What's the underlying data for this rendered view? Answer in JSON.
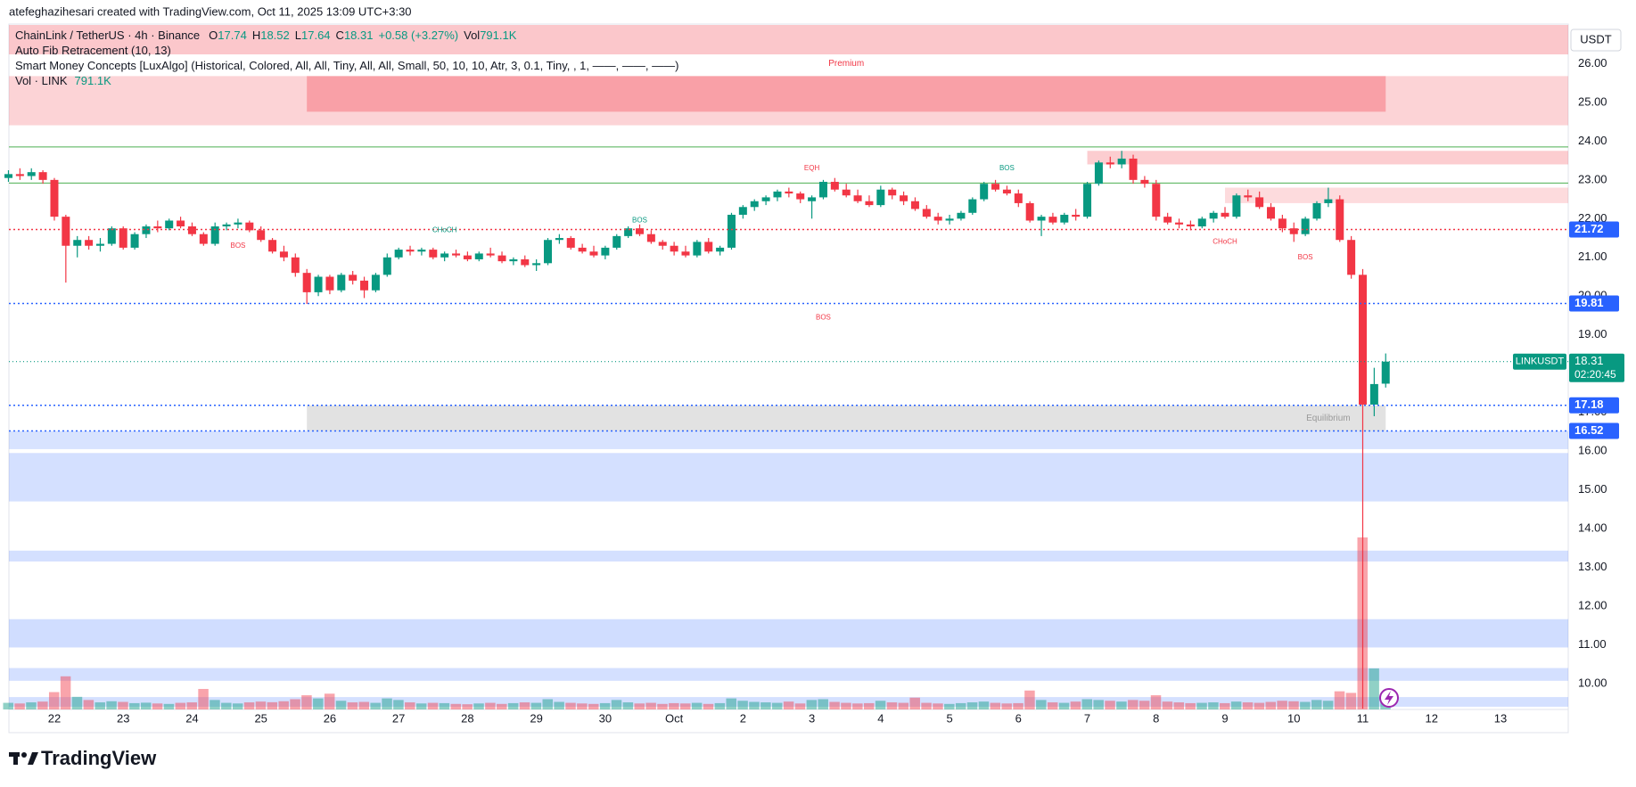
{
  "header": "atefeghazihesari created with TradingView.com, Oct 11, 2025 13:09 UTC+3:30",
  "brand": "TradingView",
  "chart_data": {
    "type": "candlestick",
    "symbol": "ChainLink / TetherUS · 4h · Binance",
    "ohlc_prefixes": [
      "O",
      "H",
      "L",
      "C"
    ],
    "change": "+0.58 (+3.27%)",
    "volume_prefix": "Vol",
    "indicators": [
      "Auto Fib Retracement (10, 13)",
      "Smart Money Concepts [LuxAlgo] (Historical, Colored, All, All, Tiny, All, All, Small, 50, 10, 10, Atr, 3, 0.1, Tiny, , 1, ——, ——, ——)",
      "Vol · LINK"
    ],
    "currency": "USDT",
    "ticker": "LINKUSDT",
    "countdown": "02:20:45",
    "up_color": "#089981",
    "down_color": "#f23645",
    "level_color": "#2962ff",
    "grid": false,
    "categories": [
      null,
      null,
      null,
      null,
      "22",
      null,
      null,
      null,
      null,
      null,
      "23",
      null,
      null,
      null,
      null,
      null,
      "24",
      null,
      null,
      null,
      null,
      null,
      "25",
      null,
      null,
      null,
      null,
      null,
      "26",
      null,
      null,
      null,
      null,
      null,
      "27",
      null,
      null,
      null,
      null,
      null,
      "28",
      null,
      null,
      null,
      null,
      null,
      "29",
      null,
      null,
      null,
      null,
      null,
      "30",
      null,
      null,
      null,
      null,
      null,
      "Oct",
      null,
      null,
      null,
      null,
      null,
      "2",
      null,
      null,
      null,
      null,
      null,
      "3",
      null,
      null,
      null,
      null,
      null,
      "4",
      null,
      null,
      null,
      null,
      null,
      "5",
      null,
      null,
      null,
      null,
      null,
      "6",
      null,
      null,
      null,
      null,
      null,
      "7",
      null,
      null,
      null,
      null,
      null,
      "8",
      null,
      null,
      null,
      null,
      null,
      "9",
      null,
      null,
      null,
      null,
      null,
      "10",
      null,
      null,
      null,
      null,
      null,
      "11",
      null,
      null,
      null,
      null,
      null,
      "12",
      null,
      null,
      null,
      null,
      null,
      "13",
      null,
      null,
      null,
      null,
      null,
      null
    ],
    "open": [
      23.05,
      23.15,
      23.1,
      23.2,
      23.0,
      22.05,
      21.3,
      21.45,
      21.3,
      21.35,
      21.75,
      21.25,
      21.6,
      21.8,
      21.75,
      21.95,
      21.8,
      21.6,
      21.35,
      21.8,
      21.85,
      21.9,
      21.7,
      21.45,
      21.15,
      21.0,
      20.6,
      20.1,
      20.5,
      20.15,
      20.55,
      20.4,
      20.15,
      20.55,
      21.0,
      21.2,
      21.15,
      21.2,
      21.0,
      21.1,
      21.05,
      20.95,
      21.1,
      21.05,
      20.9,
      20.95,
      20.8,
      20.85,
      21.45,
      21.5,
      21.25,
      21.15,
      21.05,
      21.25,
      21.55,
      21.75,
      21.6,
      21.4,
      21.3,
      21.15,
      21.05,
      21.4,
      21.15,
      21.25,
      22.1,
      22.3,
      22.45,
      22.55,
      22.7,
      22.65,
      22.45,
      22.55,
      22.95,
      22.75,
      22.6,
      22.45,
      22.35,
      22.75,
      22.6,
      22.45,
      22.25,
      22.05,
      21.95,
      22.0,
      22.15,
      22.5,
      22.9,
      22.75,
      22.65,
      22.4,
      21.95,
      22.05,
      21.9,
      22.1,
      22.05,
      22.9,
      23.45,
      23.4,
      23.55,
      23.0,
      22.9,
      22.05,
      21.9,
      21.85,
      21.8,
      22.0,
      22.15,
      22.05,
      22.6,
      22.55,
      22.3,
      22.0,
      21.75,
      21.6,
      22.0,
      22.4,
      22.5,
      21.45,
      20.55,
      17.2,
      17.74,
      null,
      null,
      null,
      null,
      null,
      null,
      null,
      null,
      null,
      null,
      null,
      null,
      null,
      null,
      null,
      null
    ],
    "high": [
      23.25,
      23.3,
      23.3,
      23.25,
      23.05,
      22.1,
      21.55,
      21.55,
      21.5,
      21.8,
      21.8,
      21.65,
      21.85,
      21.95,
      22.0,
      22.05,
      21.9,
      21.65,
      21.9,
      21.9,
      22.0,
      21.95,
      21.8,
      21.5,
      21.3,
      21.1,
      20.7,
      20.55,
      20.55,
      20.6,
      20.65,
      20.5,
      20.6,
      21.1,
      21.25,
      21.3,
      21.25,
      21.25,
      21.15,
      21.2,
      21.15,
      21.15,
      21.25,
      21.15,
      21.0,
      21.05,
      20.95,
      21.5,
      21.6,
      21.55,
      21.35,
      21.3,
      21.3,
      21.6,
      21.8,
      21.85,
      21.7,
      21.45,
      21.4,
      21.3,
      21.45,
      21.5,
      21.3,
      22.15,
      22.35,
      22.5,
      22.6,
      22.75,
      22.8,
      22.7,
      22.6,
      23.0,
      23.05,
      22.9,
      22.75,
      22.6,
      22.85,
      22.8,
      22.7,
      22.55,
      22.35,
      22.15,
      22.1,
      22.2,
      22.55,
      22.95,
      23.0,
      22.85,
      22.75,
      22.45,
      22.1,
      22.15,
      22.15,
      22.25,
      22.95,
      23.5,
      23.6,
      23.75,
      23.65,
      23.1,
      23.0,
      22.15,
      22.0,
      21.95,
      22.05,
      22.2,
      22.3,
      22.65,
      22.75,
      22.7,
      22.4,
      22.1,
      21.9,
      22.05,
      22.45,
      22.8,
      22.6,
      21.55,
      20.7,
      18.15,
      18.52,
      null,
      null,
      null,
      null,
      null,
      null,
      null,
      null,
      null,
      null,
      null,
      null,
      null,
      null,
      null,
      null
    ],
    "low": [
      22.95,
      23.0,
      23.0,
      22.9,
      21.95,
      20.35,
      21.0,
      21.2,
      21.15,
      21.3,
      21.2,
      21.2,
      21.5,
      21.65,
      21.7,
      21.75,
      21.55,
      21.3,
      21.3,
      21.7,
      21.75,
      21.65,
      21.4,
      21.1,
      20.9,
      20.5,
      19.8,
      20.0,
      20.05,
      20.1,
      20.3,
      19.95,
      20.1,
      20.5,
      20.95,
      21.05,
      21.05,
      20.95,
      20.9,
      21.0,
      20.9,
      20.9,
      21.0,
      20.85,
      20.8,
      20.75,
      20.65,
      20.8,
      21.35,
      21.2,
      21.1,
      21.0,
      20.95,
      21.2,
      21.5,
      21.55,
      21.35,
      21.2,
      21.05,
      21.0,
      21.0,
      21.1,
      21.05,
      21.2,
      22.0,
      22.2,
      22.35,
      22.45,
      22.55,
      22.4,
      22.0,
      22.5,
      22.7,
      22.55,
      22.4,
      22.3,
      22.3,
      22.5,
      22.35,
      22.2,
      22.0,
      21.85,
      21.85,
      21.95,
      22.1,
      22.45,
      22.7,
      22.6,
      22.3,
      21.9,
      21.55,
      21.85,
      21.85,
      21.95,
      22.0,
      22.85,
      23.3,
      23.3,
      22.9,
      22.8,
      21.95,
      21.85,
      21.75,
      21.7,
      21.75,
      21.9,
      22.0,
      22.0,
      22.45,
      22.25,
      21.95,
      21.65,
      21.4,
      21.55,
      21.95,
      22.3,
      21.4,
      20.45,
      9.35,
      16.9,
      17.64,
      null,
      null,
      null,
      null,
      null,
      null,
      null,
      null,
      null,
      null,
      null,
      null,
      null,
      null,
      null,
      null
    ],
    "close": [
      23.15,
      23.1,
      23.2,
      23.0,
      22.05,
      21.3,
      21.45,
      21.3,
      21.35,
      21.75,
      21.25,
      21.6,
      21.8,
      21.75,
      21.95,
      21.8,
      21.6,
      21.35,
      21.8,
      21.85,
      21.9,
      21.7,
      21.45,
      21.15,
      21.0,
      20.6,
      20.1,
      20.5,
      20.15,
      20.55,
      20.4,
      20.15,
      20.55,
      21.0,
      21.2,
      21.15,
      21.2,
      21.0,
      21.1,
      21.05,
      20.95,
      21.1,
      21.05,
      20.9,
      20.95,
      20.8,
      20.85,
      21.45,
      21.5,
      21.25,
      21.15,
      21.05,
      21.25,
      21.55,
      21.75,
      21.6,
      21.4,
      21.3,
      21.15,
      21.05,
      21.4,
      21.15,
      21.25,
      22.1,
      22.3,
      22.45,
      22.55,
      22.7,
      22.65,
      22.5,
      22.55,
      22.95,
      22.75,
      22.6,
      22.45,
      22.35,
      22.75,
      22.6,
      22.45,
      22.25,
      22.05,
      21.95,
      22.0,
      22.15,
      22.5,
      22.9,
      22.75,
      22.65,
      22.4,
      21.95,
      22.05,
      21.9,
      22.1,
      22.05,
      22.9,
      23.45,
      23.4,
      23.55,
      23.0,
      22.9,
      22.05,
      21.9,
      21.85,
      21.8,
      22.0,
      22.15,
      22.05,
      22.6,
      22.55,
      22.3,
      22.0,
      21.75,
      21.6,
      22.0,
      22.4,
      22.5,
      21.45,
      20.55,
      17.2,
      17.73,
      18.31,
      null,
      null,
      null,
      null,
      null,
      null,
      null,
      null,
      null,
      null,
      null,
      null,
      null,
      null,
      null,
      null
    ],
    "volume": [
      420000,
      380000,
      450000,
      500000,
      1100000,
      2100000,
      800000,
      600000,
      450000,
      520000,
      480000,
      400000,
      430000,
      380000,
      350000,
      420000,
      450000,
      1300000,
      600000,
      420000,
      380000,
      450000,
      500000,
      460000,
      520000,
      650000,
      900000,
      700000,
      1000000,
      550000,
      450000,
      480000,
      420000,
      700000,
      600000,
      450000,
      380000,
      420000,
      400000,
      350000,
      330000,
      380000,
      420000,
      350000,
      400000,
      450000,
      420000,
      650000,
      480000,
      420000,
      380000,
      350000,
      400000,
      600000,
      450000,
      380000,
      420000,
      350000,
      400000,
      380000,
      420000,
      350000,
      400000,
      700000,
      550000,
      480000,
      450000,
      420000,
      500000,
      380000,
      600000,
      650000,
      480000,
      420000,
      380000,
      400000,
      550000,
      450000,
      420000,
      750000,
      420000,
      380000,
      350000,
      400000,
      450000,
      500000,
      420000,
      380000,
      400000,
      1200000,
      600000,
      450000,
      420000,
      500000,
      650000,
      600000,
      550000,
      500000,
      600000,
      550000,
      900000,
      500000,
      450000,
      400000,
      420000,
      450000,
      400000,
      500000,
      450000,
      420000,
      480000,
      550000,
      520000,
      480000,
      600000,
      550000,
      1150000,
      1050000,
      10900000,
      2600000,
      791100,
      null,
      null,
      null,
      null,
      null,
      null,
      null,
      null,
      null,
      null,
      null,
      null,
      null,
      null,
      null,
      null
    ],
    "volume_last_label": "791.1K",
    "ylim": [
      9.33,
      27.0
    ],
    "yticks": [
      {
        "value": 10,
        "label": "10.00"
      },
      {
        "value": 11,
        "label": "11.00"
      },
      {
        "value": 12,
        "label": "12.00"
      },
      {
        "value": 13,
        "label": "13.00"
      },
      {
        "value": 14,
        "label": "14.00"
      },
      {
        "value": 15,
        "label": "15.00"
      },
      {
        "value": 16,
        "label": "16.00"
      },
      {
        "value": 17,
        "label": "17.00"
      },
      {
        "value": 18,
        "label": "18.00"
      },
      {
        "value": 19,
        "label": "19.00"
      },
      {
        "value": 20,
        "label": "20.00"
      },
      {
        "value": 21,
        "label": "21.00"
      },
      {
        "value": 22,
        "label": "22.00"
      },
      {
        "value": 23,
        "label": "23.00"
      },
      {
        "value": 24,
        "label": "24.00"
      },
      {
        "value": 25,
        "label": "25.00"
      },
      {
        "value": 26,
        "label": "26.00"
      }
    ],
    "levels": [
      21.72,
      19.81,
      17.18,
      16.52
    ],
    "fib_lines": [
      23.85,
      22.92
    ],
    "zones": [
      {
        "from": 26.24,
        "to": 27.0,
        "color": "rgba(242,54,69,0.28)"
      },
      {
        "from": 24.41,
        "to": 25.68,
        "color": "rgba(242,54,69,0.22)"
      },
      {
        "from": 24.76,
        "to": 25.68,
        "color": "rgba(242,54,69,0.32)"
      },
      {
        "from": 23.4,
        "to": 23.75,
        "color": "rgba(242,54,69,0.25)"
      },
      {
        "from": 22.4,
        "to": 22.8,
        "color": "rgba(242,54,69,0.18)"
      },
      {
        "from": 16.52,
        "to": 17.18,
        "color": "rgba(140,140,140,0.25)"
      },
      {
        "from": 16.05,
        "to": 16.52,
        "color": "rgba(41,98,255,0.18)"
      },
      {
        "from": 14.7,
        "to": 15.95,
        "color": "rgba(41,98,255,0.2)"
      },
      {
        "from": 13.15,
        "to": 13.43,
        "color": "rgba(41,98,255,0.2)"
      },
      {
        "from": 10.93,
        "to": 11.66,
        "color": "rgba(41,98,255,0.22)"
      },
      {
        "from": 10.07,
        "to": 10.4,
        "color": "rgba(41,98,255,0.2)"
      },
      {
        "from": 9.4,
        "to": 9.65,
        "color": "rgba(41,98,255,0.2)"
      }
    ],
    "annotations": [
      {
        "text": "Premium",
        "color": "#f23645"
      },
      {
        "text": "Equilibrium",
        "color": "#999999"
      },
      {
        "text": "BOS",
        "color": "#f23645"
      },
      {
        "text": "CHoCH",
        "color": "#089981"
      },
      {
        "text": "BOS",
        "color": "#089981"
      },
      {
        "text": "EQH",
        "color": "#f23645"
      },
      {
        "text": "BOS",
        "color": "#f23645"
      },
      {
        "text": "BOS",
        "color": "#089981"
      },
      {
        "text": "CHoCH",
        "color": "#f23645"
      },
      {
        "text": "BOS",
        "color": "#f23645"
      }
    ]
  }
}
